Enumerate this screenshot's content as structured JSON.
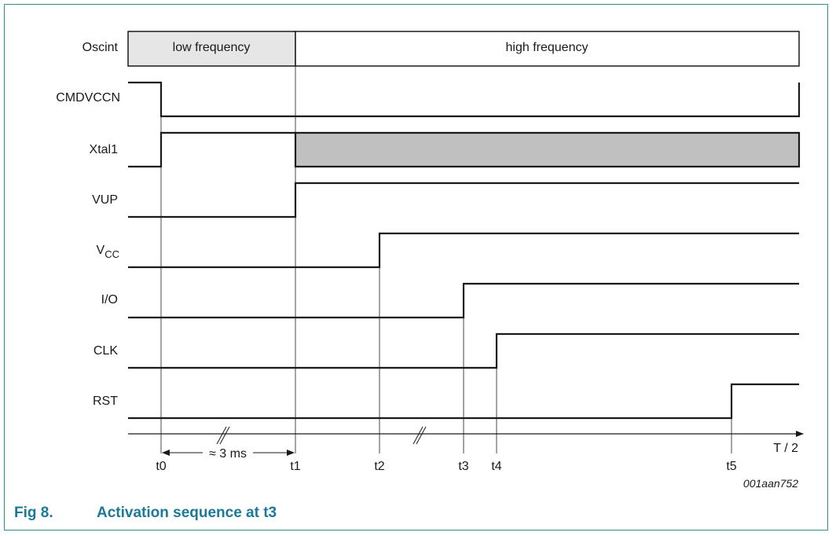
{
  "colors": {
    "frame": "#2f8f90",
    "caption": "#1a7a98",
    "low_freq_fill": "#e6e6e6",
    "xtal_fill": "#c0c0c0"
  },
  "signals": {
    "oscint": "Oscint",
    "cmdvccn": "CMDVCCN",
    "xtal1": "Xtal1",
    "vup": "VUP",
    "vcc_main": "V",
    "vcc_sub": "CC",
    "io": "I/O",
    "clk": "CLK",
    "rst": "RST"
  },
  "oscint": {
    "low": "low frequency",
    "high": "high frequency"
  },
  "axis": {
    "label": "T / 2",
    "ticks": [
      "t0",
      "t1",
      "t2",
      "t3",
      "t4",
      "t5"
    ],
    "duration": "≈ 3 ms"
  },
  "figure_ref": "001aan752",
  "caption": {
    "number": "Fig 8.",
    "title": "Activation sequence at t3"
  }
}
